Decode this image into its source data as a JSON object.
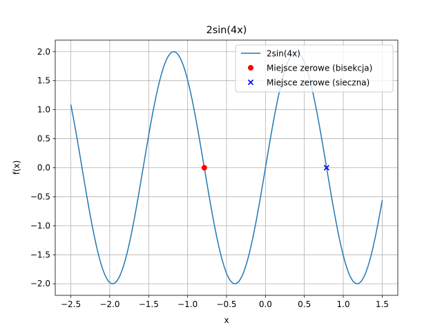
{
  "chart_data": {
    "type": "line",
    "title": "2sin(4x)",
    "xlabel": "x",
    "ylabel": "f(x)",
    "xlim": [
      -2.7,
      1.7
    ],
    "ylim": [
      -2.2,
      2.2
    ],
    "grid": true,
    "legend_position": "top-right",
    "x_ticks": [
      -2.5,
      -2.0,
      -1.5,
      -1.0,
      -0.5,
      0.0,
      0.5,
      1.0,
      1.5
    ],
    "x_tick_labels": [
      "−2.5",
      "−2.0",
      "−1.5",
      "−1.0",
      "−0.5",
      "0.0",
      "0.5",
      "1.0",
      "1.5"
    ],
    "y_ticks": [
      -2.0,
      -1.5,
      -1.0,
      -0.5,
      0.0,
      0.5,
      1.0,
      1.5,
      2.0
    ],
    "y_tick_labels": [
      "−2.0",
      "−1.5",
      "−1.0",
      "−0.5",
      "0.0",
      "0.5",
      "1.0",
      "1.5",
      "2.0"
    ],
    "series": [
      {
        "name": "2sin(4x)",
        "kind": "line",
        "color": "#1f77b4",
        "x": [
          -2.5,
          -2.45,
          -2.4,
          -2.35,
          -2.3,
          -2.25,
          -2.2,
          -2.15,
          -2.1,
          -2.05,
          -2.0,
          -1.95,
          -1.9,
          -1.85,
          -1.8,
          -1.75,
          -1.7,
          -1.65,
          -1.6,
          -1.55,
          -1.5,
          -1.45,
          -1.4,
          -1.35,
          -1.3,
          -1.25,
          -1.2,
          -1.15,
          -1.1,
          -1.05,
          -1.0,
          -0.95,
          -0.9,
          -0.85,
          -0.8,
          -0.75,
          -0.7,
          -0.65,
          -0.6,
          -0.55,
          -0.5,
          -0.45,
          -0.4,
          -0.35,
          -0.3,
          -0.25,
          -0.2,
          -0.15,
          -0.1,
          -0.05,
          0.0,
          0.05,
          0.1,
          0.15,
          0.2,
          0.25,
          0.3,
          0.35,
          0.4,
          0.45,
          0.5,
          0.55,
          0.6,
          0.65,
          0.7,
          0.75,
          0.8,
          0.85,
          0.9,
          0.95,
          1.0,
          1.05,
          1.1,
          1.15,
          1.2,
          1.25,
          1.3,
          1.35,
          1.4,
          1.45,
          1.5
        ],
        "y": [
          1.088,
          0.72,
          0.317,
          -0.101,
          -0.516,
          -0.907,
          -1.259,
          -1.557,
          -1.787,
          -1.941,
          -1.979,
          -1.984,
          -1.882,
          -1.691,
          -1.489,
          -1.312,
          -0.988,
          -0.621,
          -0.166,
          0.266,
          0.559,
          0.927,
          1.269,
          1.546,
          1.779,
          1.954,
          1.992,
          1.986,
          1.904,
          1.734,
          1.514,
          1.232,
          0.885,
          0.504,
          0.117,
          -0.281,
          -0.669,
          -1.035,
          -1.351,
          -1.616,
          -1.819,
          -1.946,
          -1.998,
          -1.971,
          -1.864,
          -1.683,
          -1.435,
          -1.129,
          -0.779,
          -0.397,
          0.0,
          0.397,
          0.779,
          1.129,
          1.435,
          1.683,
          1.864,
          1.971,
          1.998,
          1.946,
          1.819,
          1.616,
          1.351,
          1.035,
          0.669,
          0.281,
          -0.117,
          -0.504,
          -0.885,
          -1.232,
          -1.514,
          -1.734,
          -1.904,
          -1.986,
          -1.992,
          -1.954,
          -1.779,
          -1.546,
          -1.269,
          -0.927,
          -0.559
        ]
      },
      {
        "name": "Miejsce zerowe (bisekcja)",
        "kind": "scatter",
        "marker": "circle",
        "color": "#ff0000",
        "x": [
          -0.785
        ],
        "y": [
          0.0
        ]
      },
      {
        "name": "Miejsce zerowe (sieczna)",
        "kind": "scatter",
        "marker": "x",
        "color": "#0000ff",
        "x": [
          0.785
        ],
        "y": [
          0.0
        ]
      }
    ]
  }
}
